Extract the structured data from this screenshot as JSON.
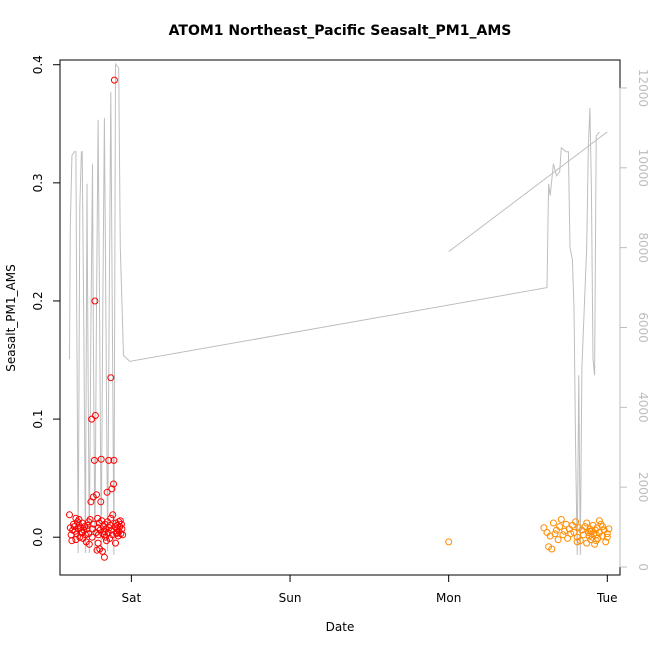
{
  "chart_data": {
    "type": "scatter",
    "title": "ATOM1 Northeast_Pacific Seasalt_PM1_AMS",
    "xlabel": "Date",
    "ylabel": "Seasalt_PM1_AMS",
    "ylim": [
      -0.032,
      0.404
    ],
    "xlim": [
      -0.45,
      3.08
    ],
    "x_units": "days after Sat 00:00",
    "x_ticks": [
      {
        "label": "Sat",
        "value": 0
      },
      {
        "label": "Sun",
        "value": 1
      },
      {
        "label": "Mon",
        "value": 2
      },
      {
        "label": "Tue",
        "value": 3
      }
    ],
    "y_ticks": [
      {
        "label": "0.0",
        "value": 0.0
      },
      {
        "label": "0.1",
        "value": 0.1
      },
      {
        "label": "0.2",
        "value": 0.2
      },
      {
        "label": "0.3",
        "value": 0.3
      },
      {
        "label": "0.4",
        "value": 0.4
      }
    ],
    "right_axis": {
      "color": "#bebebe",
      "ylim": [
        -200,
        12700
      ],
      "ticks": [
        {
          "label": "0",
          "value": 0
        },
        {
          "label": "2000",
          "value": 2000
        },
        {
          "label": "4000",
          "value": 4000
        },
        {
          "label": "6000",
          "value": 6000
        },
        {
          "label": "8000",
          "value": 8000
        },
        {
          "label": "10000",
          "value": 10000
        },
        {
          "label": "12000",
          "value": 12000
        }
      ]
    },
    "grid": false,
    "series": [
      {
        "color": "#ff0000",
        "marker": "open-circle",
        "points": [
          [
            -0.39,
            0.019
          ],
          [
            -0.385,
            0.008
          ],
          [
            -0.38,
            0.002
          ],
          [
            -0.375,
            -0.003
          ],
          [
            -0.37,
            0.006
          ],
          [
            -0.365,
            0.011
          ],
          [
            -0.36,
            0.009
          ],
          [
            -0.355,
            0.005
          ],
          [
            -0.35,
            0.016
          ],
          [
            -0.345,
            0.003
          ],
          [
            -0.34,
            0.013
          ],
          [
            -0.335,
            0.007
          ],
          [
            -0.33,
            0.01
          ],
          [
            -0.325,
            0.0
          ],
          [
            -0.32,
            0.008
          ],
          [
            -0.315,
            0.004
          ],
          [
            -0.31,
            0.012
          ],
          [
            -0.305,
            -0.001
          ],
          [
            -0.3,
            0.006
          ],
          [
            -0.295,
            0.009
          ],
          [
            -0.29,
            0.002
          ],
          [
            -0.285,
            -0.004
          ],
          [
            -0.28,
            0.007
          ],
          [
            -0.275,
            0.01
          ],
          [
            -0.27,
            0.003
          ],
          [
            -0.265,
            -0.006
          ],
          [
            -0.26,
            0.015
          ],
          [
            -0.255,
            0.03
          ],
          [
            -0.25,
            0.1
          ],
          [
            -0.247,
            0.0
          ],
          [
            -0.243,
            0.007
          ],
          [
            -0.24,
            0.034
          ],
          [
            -0.237,
            0.011
          ],
          [
            -0.233,
            0.065
          ],
          [
            -0.23,
            0.2
          ],
          [
            -0.227,
            0.103
          ],
          [
            -0.223,
            0.004
          ],
          [
            -0.22,
            0.036
          ],
          [
            -0.217,
            -0.011
          ],
          [
            -0.213,
            0.016
          ],
          [
            -0.21,
            0.008
          ],
          [
            -0.207,
            0.002
          ],
          [
            -0.203,
            0.012
          ],
          [
            -0.2,
            -0.01
          ],
          [
            -0.197,
            0.006
          ],
          [
            -0.193,
            0.03
          ],
          [
            -0.19,
            0.066
          ],
          [
            -0.187,
            0.014
          ],
          [
            -0.183,
            -0.012
          ],
          [
            -0.18,
            0.003
          ],
          [
            -0.177,
            0.009
          ],
          [
            -0.173,
            0.005
          ],
          [
            -0.17,
            -0.017
          ],
          [
            -0.167,
            0.011
          ],
          [
            -0.163,
            0.0
          ],
          [
            -0.16,
            0.007
          ],
          [
            -0.157,
            -0.003
          ],
          [
            -0.153,
            0.038
          ],
          [
            -0.15,
            0.013
          ],
          [
            -0.147,
            0.004
          ],
          [
            -0.143,
            0.065
          ],
          [
            -0.14,
            0.008
          ],
          [
            -0.137,
            -0.001
          ],
          [
            -0.133,
            0.01
          ],
          [
            -0.13,
            0.135
          ],
          [
            -0.127,
            0.006
          ],
          [
            -0.123,
            0.041
          ],
          [
            -0.12,
            0.002
          ],
          [
            -0.117,
            0.019
          ],
          [
            -0.113,
            0.045
          ],
          [
            -0.11,
            0.065
          ],
          [
            -0.107,
            0.387
          ],
          [
            -0.103,
            0.009
          ],
          [
            -0.1,
            -0.005
          ],
          [
            -0.097,
            0.012
          ],
          [
            -0.093,
            0.003
          ],
          [
            -0.09,
            0.007
          ],
          [
            -0.087,
            0.01
          ],
          [
            -0.083,
            0.001
          ],
          [
            -0.08,
            0.013
          ],
          [
            -0.077,
            0.005
          ],
          [
            -0.073,
            0.009
          ],
          [
            -0.07,
            0.014
          ],
          [
            -0.067,
            0.003
          ],
          [
            -0.063,
            0.011
          ],
          [
            -0.06,
            0.007
          ],
          [
            -0.055,
            0.002
          ],
          [
            -0.35,
            -0.002
          ],
          [
            -0.31,
            0.004
          ],
          [
            -0.27,
            0.013
          ],
          [
            -0.21,
            -0.005
          ],
          [
            -0.17,
            0.002
          ],
          [
            -0.13,
            0.016
          ],
          [
            -0.09,
            0.004
          ],
          [
            -0.33,
            0.015
          ]
        ]
      },
      {
        "color": "#ff8c00",
        "marker": "open-circle",
        "points": [
          [
            2.0,
            -0.004
          ],
          [
            2.6,
            0.008
          ],
          [
            2.62,
            0.004
          ],
          [
            2.63,
            -0.008
          ],
          [
            2.64,
            0.001
          ],
          [
            2.65,
            -0.01
          ],
          [
            2.66,
            0.012
          ],
          [
            2.67,
            0.003
          ],
          [
            2.68,
            0.006
          ],
          [
            2.69,
            -0.002
          ],
          [
            2.7,
            0.009
          ],
          [
            2.71,
            0.015
          ],
          [
            2.72,
            0.002
          ],
          [
            2.73,
            0.005
          ],
          [
            2.74,
            0.011
          ],
          [
            2.75,
            -0.001
          ],
          [
            2.76,
            0.007
          ],
          [
            2.77,
            0.003
          ],
          [
            2.78,
            0.01
          ],
          [
            2.79,
            0.004
          ],
          [
            2.8,
            0.013
          ],
          [
            2.81,
            0.0
          ],
          [
            2.82,
            0.008
          ],
          [
            2.83,
            -0.003
          ],
          [
            2.84,
            0.006
          ],
          [
            2.85,
            0.002
          ],
          [
            2.86,
            0.009
          ],
          [
            2.87,
            -0.005
          ],
          [
            2.88,
            0.004
          ],
          [
            2.885,
            0.001
          ],
          [
            2.89,
            0.007
          ],
          [
            2.895,
            -0.002
          ],
          [
            2.9,
            0.005
          ],
          [
            2.905,
            0.0
          ],
          [
            2.91,
            0.01
          ],
          [
            2.915,
            0.003
          ],
          [
            2.92,
            -0.006
          ],
          [
            2.925,
            0.006
          ],
          [
            2.93,
            0.002
          ],
          [
            2.935,
            0.008
          ],
          [
            2.94,
            -0.001
          ],
          [
            2.95,
            0.004
          ],
          [
            2.96,
            0.011
          ],
          [
            2.97,
            0.001
          ],
          [
            2.98,
            0.006
          ],
          [
            2.99,
            -0.004
          ],
          [
            3.0,
            0.003
          ],
          [
            3.01,
            0.007
          ],
          [
            2.87,
            0.012
          ],
          [
            2.93,
            -0.003
          ],
          [
            2.95,
            0.014
          ],
          [
            2.81,
            -0.004
          ],
          [
            2.89,
            0.005
          ],
          [
            2.97,
            0.009
          ],
          [
            3.0,
            0.0
          ]
        ]
      }
    ],
    "line_series": {
      "axis": "right",
      "color": "#bebebe",
      "points": [
        [
          -0.39,
          5200
        ],
        [
          -0.385,
          8500
        ],
        [
          -0.375,
          10300
        ],
        [
          -0.36,
          10400
        ],
        [
          -0.35,
          10400
        ],
        [
          -0.345,
          6500
        ],
        [
          -0.335,
          350
        ],
        [
          -0.325,
          9000
        ],
        [
          -0.315,
          10400
        ],
        [
          -0.31,
          10400
        ],
        [
          -0.3,
          6000
        ],
        [
          -0.29,
          350
        ],
        [
          -0.285,
          5000
        ],
        [
          -0.28,
          9600
        ],
        [
          -0.275,
          6000
        ],
        [
          -0.265,
          350
        ],
        [
          -0.255,
          6000
        ],
        [
          -0.245,
          10100
        ],
        [
          -0.24,
          6000
        ],
        [
          -0.23,
          350
        ],
        [
          -0.22,
          6500
        ],
        [
          -0.21,
          11200
        ],
        [
          -0.2,
          6000
        ],
        [
          -0.19,
          350
        ],
        [
          -0.18,
          6500
        ],
        [
          -0.17,
          11250
        ],
        [
          -0.16,
          6000
        ],
        [
          -0.15,
          400
        ],
        [
          -0.14,
          6500
        ],
        [
          -0.13,
          11900
        ],
        [
          -0.12,
          6000
        ],
        [
          -0.11,
          300
        ],
        [
          -0.1,
          12600
        ],
        [
          -0.08,
          12500
        ],
        [
          -0.07,
          8000
        ],
        [
          -0.05,
          5300
        ],
        [
          -0.01,
          5150
        ],
        [
          2.62,
          7000
        ],
        [
          2.63,
          9600
        ],
        [
          2.64,
          9300
        ],
        [
          2.66,
          10100
        ],
        [
          2.68,
          9800
        ],
        [
          2.7,
          9900
        ],
        [
          2.71,
          10500
        ],
        [
          2.74,
          10400
        ],
        [
          2.755,
          10400
        ],
        [
          2.765,
          8000
        ],
        [
          2.78,
          7700
        ],
        [
          2.79,
          6500
        ],
        [
          2.8,
          3000
        ],
        [
          2.81,
          300
        ],
        [
          2.82,
          4800
        ],
        [
          2.83,
          300
        ],
        [
          2.84,
          5000
        ],
        [
          2.86,
          7000
        ],
        [
          2.87,
          8000
        ],
        [
          2.88,
          10500
        ],
        [
          2.89,
          11500
        ],
        [
          2.9,
          9500
        ],
        [
          2.91,
          5200
        ],
        [
          2.92,
          4800
        ],
        [
          2.93,
          10800
        ],
        [
          2.95,
          10900
        ]
      ],
      "extra_segment": [
        [
          2.0,
          7900
        ],
        [
          3.0,
          10900
        ]
      ]
    }
  }
}
